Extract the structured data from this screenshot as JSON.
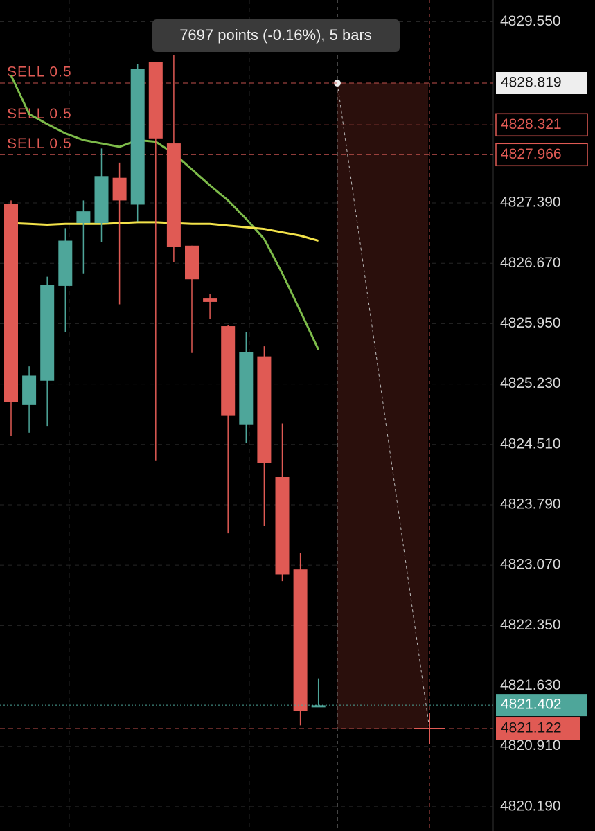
{
  "chart_data": {
    "type": "candlestick",
    "up_color": "#4ea69a",
    "down_color": "#e05a54",
    "ylim": [
      4819.9,
      4829.81
    ],
    "yticks": [
      {
        "value": 4829.55,
        "label": "4829.550"
      },
      {
        "value": 4827.39,
        "label": "4827.390"
      },
      {
        "value": 4826.67,
        "label": "4826.670"
      },
      {
        "value": 4825.95,
        "label": "4825.950"
      },
      {
        "value": 4825.23,
        "label": "4825.230"
      },
      {
        "value": 4824.51,
        "label": "4824.510"
      },
      {
        "value": 4823.79,
        "label": "4823.790"
      },
      {
        "value": 4823.07,
        "label": "4823.070"
      },
      {
        "value": 4822.35,
        "label": "4822.350"
      },
      {
        "value": 4821.63,
        "label": "4821.630"
      },
      {
        "value": 4820.91,
        "label": "4820.910"
      },
      {
        "value": 4820.19,
        "label": "4820.190"
      }
    ],
    "grid": true,
    "open": [
      4827.38,
      4824.98,
      4825.27,
      4826.4,
      4827.15,
      4827.15,
      4827.69,
      4827.37,
      4829.07,
      4828.1,
      4826.88,
      4826.25,
      4825.92,
      4824.75,
      4825.56,
      4824.12,
      4823.02,
      4821.4
    ],
    "high": [
      4827.42,
      4825.44,
      4826.51,
      4827.09,
      4827.42,
      4828.04,
      4827.87,
      4829.05,
      4829.07,
      4829.15,
      4826.88,
      4826.3,
      4825.93,
      4825.85,
      4825.68,
      4824.76,
      4823.22,
      4821.72
    ],
    "low": [
      4824.61,
      4824.65,
      4824.73,
      4825.85,
      4826.55,
      4826.92,
      4826.18,
      4827.17,
      4824.32,
      4826.68,
      4825.6,
      4826.01,
      4823.45,
      4824.53,
      4823.54,
      4822.88,
      4821.16,
      4821.4
    ],
    "close": [
      4825.02,
      4825.33,
      4826.41,
      4826.94,
      4827.29,
      4827.71,
      4827.42,
      4828.99,
      4828.16,
      4826.87,
      4826.48,
      4826.21,
      4824.85,
      4825.61,
      4824.29,
      4822.96,
      4821.33,
      4821.4
    ],
    "series": [
      {
        "color": "#7dbb4a",
        "values": [
          4828.91,
          4828.45,
          4828.33,
          4828.22,
          4828.14,
          4828.1,
          4828.06,
          4828.14,
          4828.12,
          4827.98,
          4827.79,
          4827.6,
          4827.42,
          4827.2,
          4826.96,
          4826.55,
          4826.1,
          4825.64
        ]
      },
      {
        "color": "#f2e24a",
        "values": [
          4827.15,
          4827.14,
          4827.13,
          4827.14,
          4827.14,
          4827.14,
          4827.15,
          4827.16,
          4827.16,
          4827.15,
          4827.14,
          4827.14,
          4827.12,
          4827.1,
          4827.08,
          4827.04,
          4827.0,
          4826.94
        ]
      }
    ],
    "orders": [
      {
        "label": "SELL 0.5",
        "price": 4828.819
      },
      {
        "label": "SELL 0.5",
        "price": 4828.321
      },
      {
        "label": "SELL 0.5",
        "price": 4827.966
      }
    ],
    "current_price": 4821.402,
    "cursor_price": 4821.122,
    "measure": {
      "text": "7697 points (-0.16%), 5 bars",
      "from": 4828.819,
      "to": 4821.122
    }
  }
}
